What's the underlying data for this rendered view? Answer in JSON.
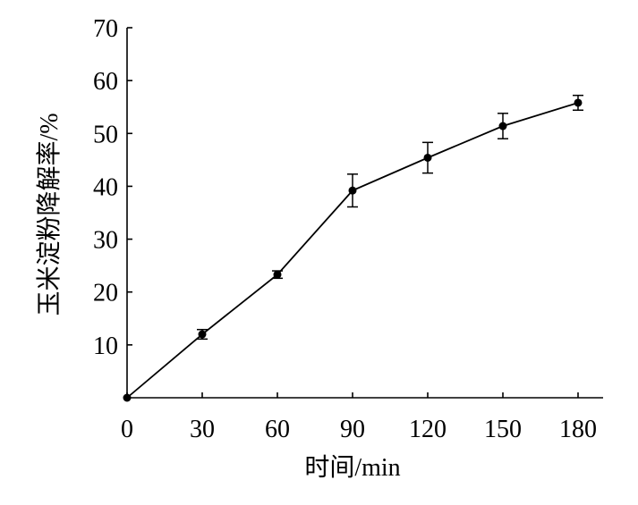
{
  "chart_data": {
    "type": "line",
    "xlabel": "时间/min",
    "ylabel": "玉米淀粉降解率/%",
    "xlim": [
      0,
      180
    ],
    "ylim": [
      0,
      70
    ],
    "xticks": [
      0,
      30,
      60,
      90,
      120,
      150,
      180
    ],
    "yticks": [
      10,
      20,
      30,
      40,
      50,
      60,
      70
    ],
    "x_tick_labels": [
      "0",
      "30",
      "60",
      "90",
      "120",
      "150",
      "180"
    ],
    "y_tick_labels": [
      "10",
      "20",
      "30",
      "40",
      "50",
      "60",
      "70"
    ],
    "grid": false,
    "series": [
      {
        "x": [
          0,
          30,
          60,
          90,
          120,
          150,
          180
        ],
        "y": [
          0,
          12.0,
          23.3,
          39.2,
          45.4,
          51.4,
          55.8
        ],
        "error": [
          0,
          0.9,
          0.7,
          3.1,
          2.9,
          2.4,
          1.4
        ]
      }
    ]
  }
}
